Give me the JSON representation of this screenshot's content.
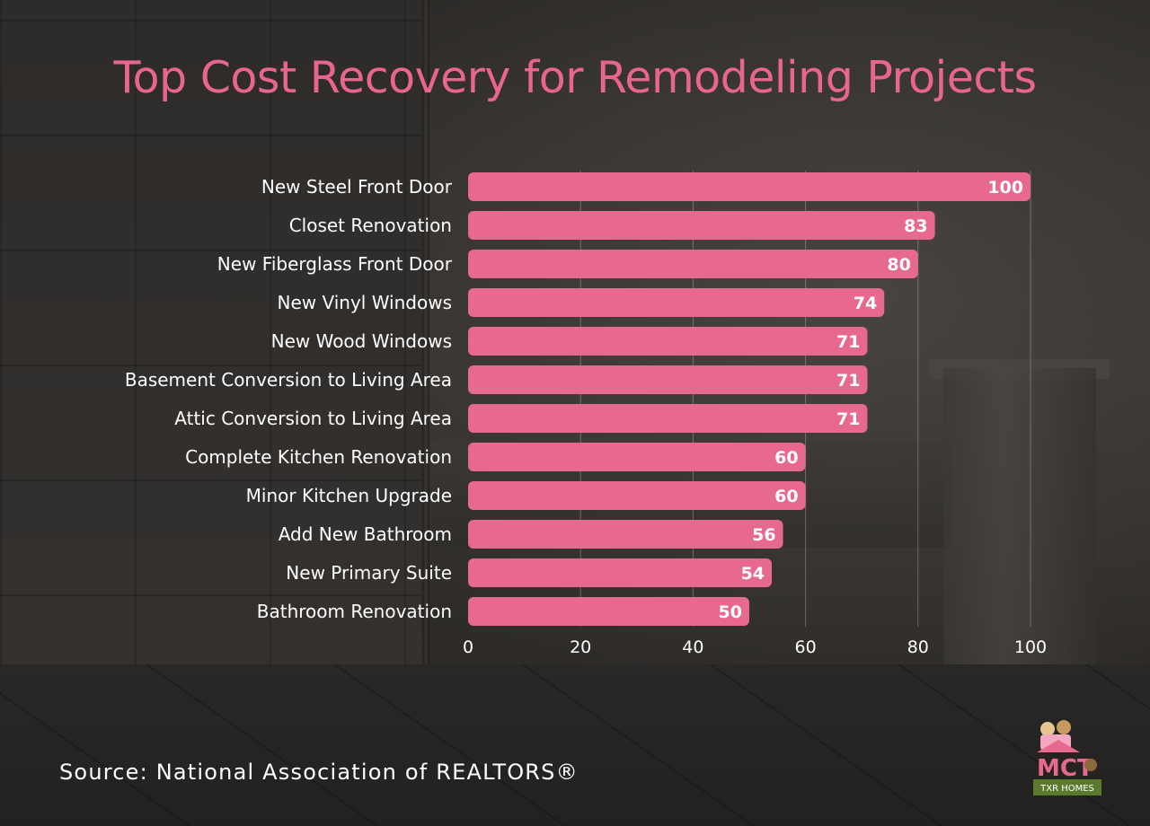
{
  "title": "Top Cost Recovery for Remodeling Projects",
  "source": "Source: National Association of REALTORS®",
  "logo": {
    "icon": "mct-txr-homes-logo",
    "text_main": "MCT",
    "text_small": "TXR HOMES"
  },
  "colors": {
    "title": "#e8658f",
    "bar": "#e8698f",
    "text": "#ffffff"
  },
  "chart_data": {
    "type": "bar",
    "orientation": "horizontal",
    "title": "Top Cost Recovery for Remodeling Projects",
    "xlabel": "",
    "ylabel": "",
    "categories": [
      "New Steel Front Door",
      "Closet Renovation",
      "New Fiberglass Front Door",
      "New Vinyl Windows",
      "New Wood Windows",
      "Basement Conversion to Living Area",
      "Attic Conversion to Living Area",
      "Complete Kitchen Renovation",
      "Minor Kitchen Upgrade",
      "Add New Bathroom",
      "New Primary Suite",
      "Bathroom Renovation"
    ],
    "values": [
      100,
      83,
      80,
      74,
      71,
      71,
      71,
      60,
      60,
      56,
      54,
      50
    ],
    "xlim": [
      0,
      100
    ],
    "xticks": [
      0,
      20,
      40,
      60,
      80,
      100
    ],
    "grid": true,
    "data_labels": true,
    "legend": "none"
  }
}
